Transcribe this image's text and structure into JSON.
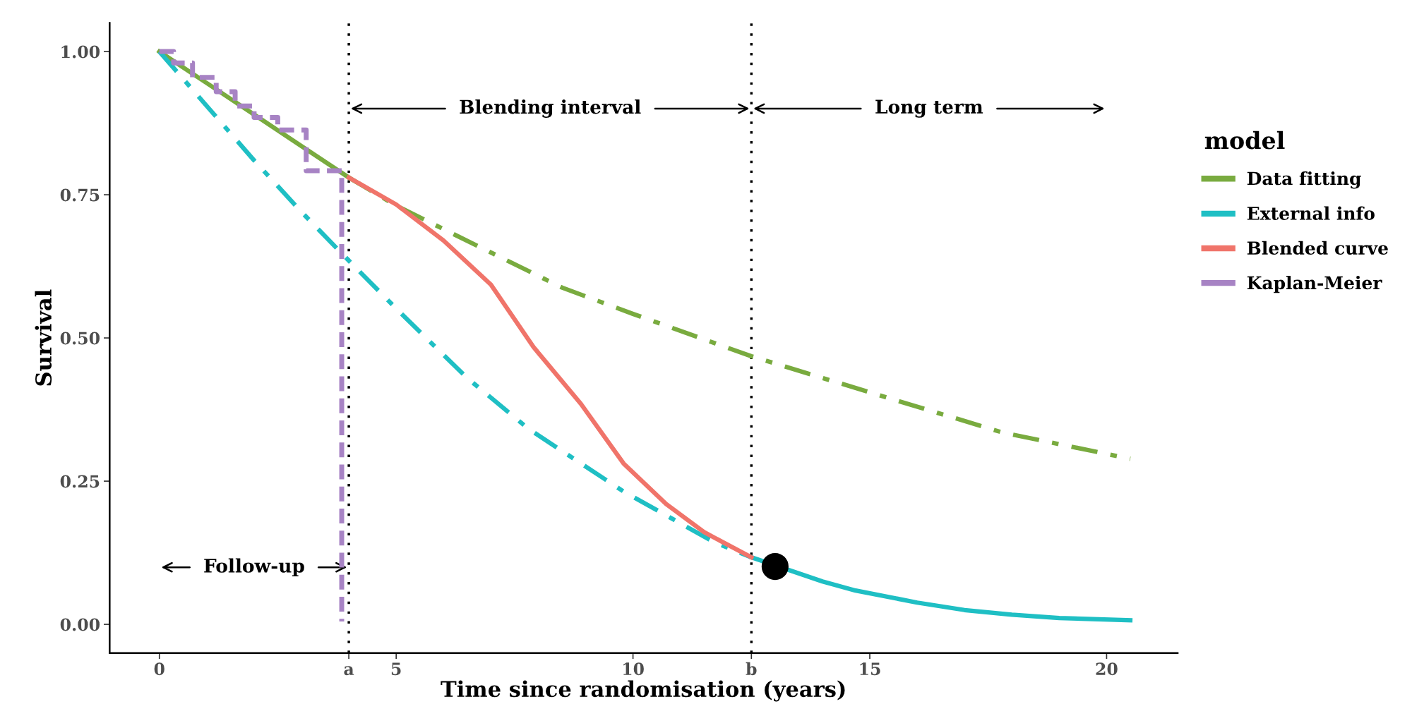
{
  "chart_data": {
    "type": "line",
    "xlabel": "Time since randomisation (years)",
    "ylabel": "Survival",
    "legend_title": "model",
    "series": [
      {
        "name": "Data fitting",
        "color": "#79ab3f",
        "line_style": "solid",
        "x": [
          0,
          1,
          2,
          3,
          4
        ],
        "values": [
          1.0,
          0.945,
          0.89,
          0.835,
          0.78
        ]
      },
      {
        "color": "#79ab3f",
        "line_style": "dashdot",
        "x": [
          4,
          5,
          6,
          8.5,
          10,
          12.5,
          15.4,
          17.8,
          20.5
        ],
        "values": [
          0.78,
          0.731,
          0.69,
          0.588,
          0.542,
          0.468,
          0.395,
          0.335,
          0.289
        ]
      },
      {
        "name": "External info",
        "color": "#1fbfc4",
        "line_style": "solid",
        "x": [
          12.5,
          14,
          14.7,
          16,
          17,
          18,
          19,
          20.5
        ],
        "values": [
          0.117,
          0.075,
          0.059,
          0.038,
          0.025,
          0.017,
          0.011,
          0.007
        ]
      },
      {
        "color": "#1fbfc4",
        "line_style": "dashdot",
        "x": [
          0,
          1,
          2,
          3,
          4,
          5.1,
          6.5,
          7.8,
          9.8,
          11.7,
          12.5
        ],
        "values": [
          1.0,
          0.905,
          0.81,
          0.72,
          0.635,
          0.543,
          0.43,
          0.341,
          0.232,
          0.144,
          0.117
        ]
      },
      {
        "name": "Blended curve",
        "color": "#f0746a",
        "line_style": "solid",
        "x": [
          4,
          5,
          6,
          7,
          7.9,
          8.9,
          9.8,
          10.7,
          11.5,
          12.5
        ],
        "values": [
          0.78,
          0.733,
          0.67,
          0.593,
          0.484,
          0.385,
          0.281,
          0.21,
          0.161,
          0.117
        ]
      },
      {
        "name": "Kaplan-Meier",
        "type": "step",
        "color": "#a783c4",
        "line_style": "dashed",
        "x": [
          0,
          0.3,
          0.7,
          1.2,
          1.6,
          2.0,
          2.5,
          3.1,
          3.85
        ],
        "values": [
          1.0,
          0.98,
          0.955,
          0.93,
          0.905,
          0.885,
          0.863,
          0.792,
          0.005
        ]
      },
      {
        "type": "scatter",
        "color": "#000000",
        "marker": "circle",
        "x": [
          13
        ],
        "values": [
          0.101
        ]
      }
    ],
    "xlim": [
      -1.05,
      21.5
    ],
    "ylim": [
      -0.05,
      1.05
    ],
    "xticks": [
      0,
      {
        "value": 4,
        "label": "a"
      },
      5,
      10,
      {
        "value": 12.5,
        "label": "b"
      },
      15,
      20
    ],
    "yticks": [
      {
        "value": 0,
        "label": "0.00"
      },
      {
        "value": 0.25,
        "label": "0.25"
      },
      {
        "value": 0.5,
        "label": "0.50"
      },
      {
        "value": 0.75,
        "label": "0.75"
      },
      {
        "value": 1,
        "label": "1.00"
      }
    ],
    "ref_lines": [
      {
        "axis": "x",
        "value": 4,
        "color": "#000000",
        "line_style": "dotted"
      },
      {
        "axis": "x",
        "value": 12.5,
        "color": "#000000",
        "line_style": "dotted"
      }
    ],
    "annotations": [
      "Follow-up",
      "Blending interval",
      "Long term"
    ],
    "grid": false,
    "legend": "right"
  }
}
